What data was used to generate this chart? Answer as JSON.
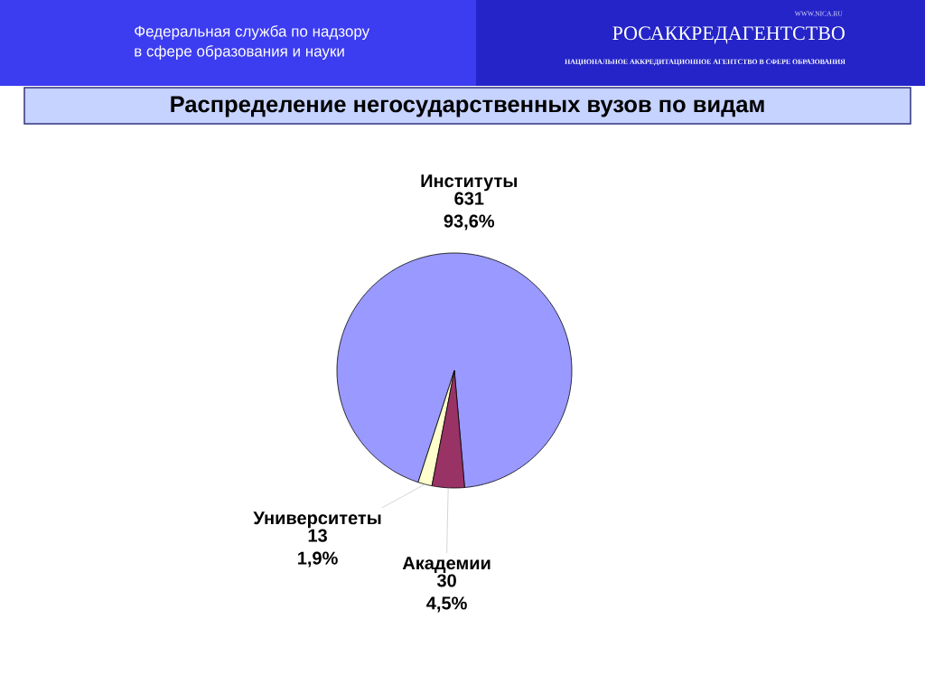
{
  "chart_data": {
    "type": "pie",
    "title": "Распределение негосударственных вузов по видам",
    "categories": [
      "Институты",
      "Университеты",
      "Академии"
    ],
    "values": [
      631,
      13,
      30
    ],
    "colors": [
      "#9999ff",
      "#ffffcc",
      "#993366"
    ],
    "value_labels": [
      "631 93,6%",
      "13 1,9%",
      "30 4,5%"
    ],
    "annotations": [
      "Федеральная служба по надзору",
      "в сфере образования и науки",
      "WWW.NICA.RU",
      "РОСАККРЕДАГЕНТСТВО",
      "НАЦИОНАЛЬНОЕ АККРЕДИТАЦИОННОЕ АГЕНТСТВО В СФЕРЕ ОБРАЗОВАНИЯ"
    ]
  }
}
